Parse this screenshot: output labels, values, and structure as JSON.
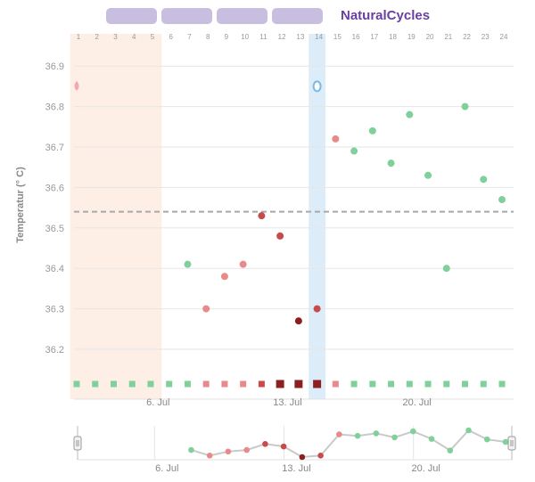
{
  "header": {
    "brand": "NaturalCycles",
    "tabs": [
      "",
      "",
      "",
      ""
    ]
  },
  "colors": {
    "green": "#7fd09a",
    "red_light": "#e88a8a",
    "red_mid": "#c94a4a",
    "red_dark": "#8c2020",
    "period_band": "#fdeee6",
    "ovulation_band": "#dcecf8",
    "coverline": "#a8a8a8",
    "brand": "#6a3fa0"
  },
  "chart_data": {
    "type": "scatter",
    "ylabel": "Temperatur (° C)",
    "ylim": [
      36.12,
      36.98
    ],
    "y_ticks": [
      36.2,
      36.3,
      36.4,
      36.5,
      36.6,
      36.7,
      36.8,
      36.9
    ],
    "day_numbers": [
      1,
      2,
      3,
      4,
      5,
      6,
      7,
      8,
      9,
      10,
      11,
      12,
      13,
      14,
      15,
      16,
      17,
      18,
      19,
      20,
      21,
      22,
      23,
      24
    ],
    "x_tick_labels": [
      {
        "day": 5,
        "label": "6. Jul"
      },
      {
        "day": 12,
        "label": "13. Jul"
      },
      {
        "day": 19,
        "label": "20. Jul"
      }
    ],
    "coverline": 36.54,
    "period_days": [
      1,
      5
    ],
    "ovulation_day": 14,
    "period_marker_day": 1,
    "ovulation_marker_day": 14,
    "marker_level": 36.85,
    "points": [
      {
        "day": 7,
        "temp": 36.41,
        "status": "green"
      },
      {
        "day": 8,
        "temp": 36.3,
        "status": "red_light"
      },
      {
        "day": 9,
        "temp": 36.38,
        "status": "red_light"
      },
      {
        "day": 10,
        "temp": 36.41,
        "status": "red_light"
      },
      {
        "day": 11,
        "temp": 36.53,
        "status": "red_mid"
      },
      {
        "day": 12,
        "temp": 36.48,
        "status": "red_mid"
      },
      {
        "day": 13,
        "temp": 36.27,
        "status": "red_dark"
      },
      {
        "day": 14,
        "temp": 36.3,
        "status": "red_mid"
      },
      {
        "day": 15,
        "temp": 36.72,
        "status": "red_light"
      },
      {
        "day": 16,
        "temp": 36.69,
        "status": "green"
      },
      {
        "day": 17,
        "temp": 36.74,
        "status": "green"
      },
      {
        "day": 18,
        "temp": 36.66,
        "status": "green"
      },
      {
        "day": 19,
        "temp": 36.78,
        "status": "green"
      },
      {
        "day": 20,
        "temp": 36.63,
        "status": "green"
      },
      {
        "day": 21,
        "temp": 36.4,
        "status": "green"
      },
      {
        "day": 22,
        "temp": 36.8,
        "status": "green"
      },
      {
        "day": 23,
        "temp": 36.62,
        "status": "green"
      },
      {
        "day": 24,
        "temp": 36.57,
        "status": "green"
      }
    ],
    "day_squares": [
      {
        "day": 1,
        "status": "green"
      },
      {
        "day": 2,
        "status": "green"
      },
      {
        "day": 3,
        "status": "green"
      },
      {
        "day": 4,
        "status": "green"
      },
      {
        "day": 5,
        "status": "green"
      },
      {
        "day": 6,
        "status": "green"
      },
      {
        "day": 7,
        "status": "green"
      },
      {
        "day": 8,
        "status": "red_light"
      },
      {
        "day": 9,
        "status": "red_light"
      },
      {
        "day": 10,
        "status": "red_light"
      },
      {
        "day": 11,
        "status": "red_mid"
      },
      {
        "day": 12,
        "status": "red_dark"
      },
      {
        "day": 13,
        "status": "red_dark"
      },
      {
        "day": 14,
        "status": "red_dark"
      },
      {
        "day": 15,
        "status": "red_light"
      },
      {
        "day": 16,
        "status": "green"
      },
      {
        "day": 17,
        "status": "green"
      },
      {
        "day": 18,
        "status": "green"
      },
      {
        "day": 19,
        "status": "green"
      },
      {
        "day": 20,
        "status": "green"
      },
      {
        "day": 21,
        "status": "green"
      },
      {
        "day": 22,
        "status": "green"
      },
      {
        "day": 23,
        "status": "green"
      },
      {
        "day": 24,
        "status": "green"
      }
    ],
    "large_square_days": [
      12,
      13,
      14
    ]
  },
  "navigator": {
    "x_tick_labels": [
      {
        "day": 5,
        "label": "6. Jul"
      },
      {
        "day": 12,
        "label": "13. Jul"
      },
      {
        "day": 19,
        "label": "20. Jul"
      }
    ]
  }
}
